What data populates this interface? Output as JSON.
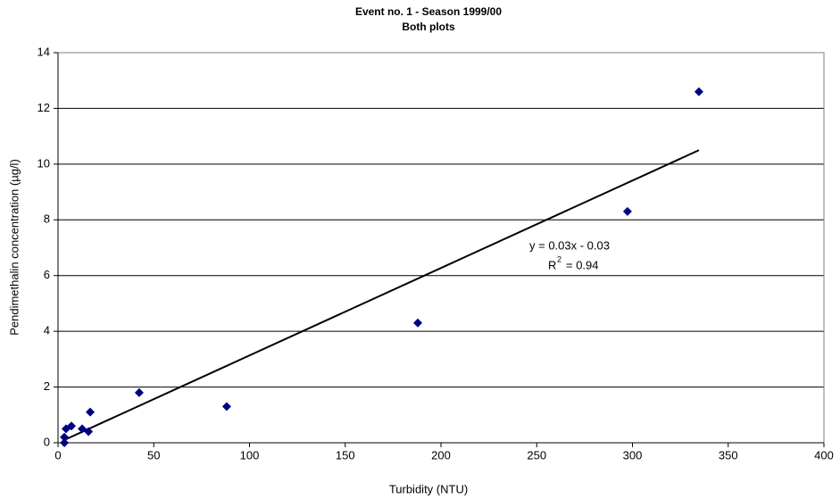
{
  "chart_data": {
    "type": "scatter",
    "title": "Event no. 1 - Season 1999/00",
    "subtitle": "Both plots",
    "x_label": "Turbidity  (NTU)",
    "y_label": "Pendimethalin concentration (µg/l)",
    "series": [
      {
        "name": "Pendimethalin",
        "color": "#000080",
        "x": [
          334.7,
          297.4,
          187.9,
          88.1,
          42.4,
          16.8,
          15.9,
          12.6,
          7,
          4.2,
          3.3,
          3.3
        ],
        "values": [
          12.6,
          8.3,
          4.3,
          1.3,
          1.8,
          1.1,
          0.4,
          0.5,
          0.6,
          0.5,
          0.2,
          0
        ]
      }
    ],
    "trendline": {
      "x": [
        3.3,
        334.7
      ],
      "values": [
        0.1,
        10.5
      ],
      "color": "#000000"
    },
    "annotation": {
      "equation": "y = 0.03x - 0.03",
      "r_symbol": "R",
      "r_exponent": "2",
      "r_value": "= 0.94"
    },
    "xlim": [
      0,
      400
    ],
    "xticks": [
      0,
      50,
      100,
      150,
      200,
      250,
      300,
      350,
      400
    ],
    "ylim": [
      0,
      14
    ],
    "yticks": [
      0,
      2,
      4,
      6,
      8,
      10,
      12,
      14
    ],
    "grid": true
  }
}
